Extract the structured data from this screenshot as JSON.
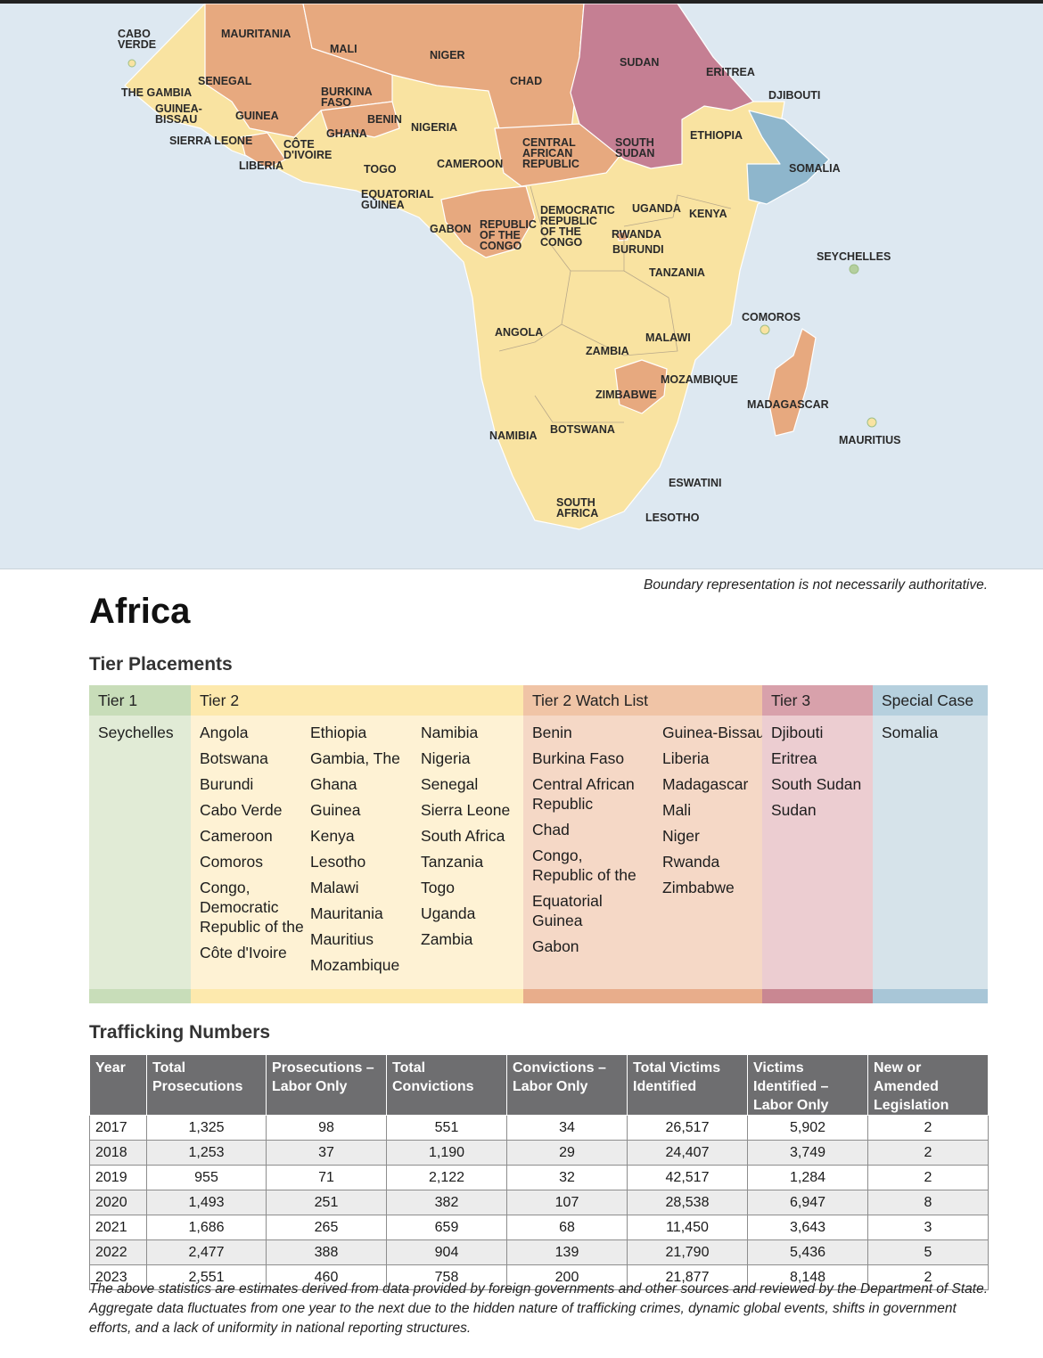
{
  "map": {
    "labels": [
      {
        "id": "cabo-verde",
        "lines": [
          "CABO",
          "VERDE"
        ]
      },
      {
        "id": "mauritania",
        "lines": [
          "MAURITANIA"
        ]
      },
      {
        "id": "mali",
        "lines": [
          "MALI"
        ]
      },
      {
        "id": "niger",
        "lines": [
          "NIGER"
        ]
      },
      {
        "id": "chad",
        "lines": [
          "CHAD"
        ]
      },
      {
        "id": "sudan",
        "lines": [
          "SUDAN"
        ]
      },
      {
        "id": "eritrea",
        "lines": [
          "ERITREA"
        ]
      },
      {
        "id": "djibouti",
        "lines": [
          "DJIBOUTI"
        ]
      },
      {
        "id": "senegal",
        "lines": [
          "SENEGAL"
        ]
      },
      {
        "id": "the-gambia",
        "lines": [
          "THE GAMBIA"
        ]
      },
      {
        "id": "guinea-bissau",
        "lines": [
          "GUINEA-",
          "BISSAU"
        ]
      },
      {
        "id": "guinea",
        "lines": [
          "GUINEA"
        ]
      },
      {
        "id": "burkina-faso",
        "lines": [
          "BURKINA",
          "FASO"
        ]
      },
      {
        "id": "benin",
        "lines": [
          "BENIN"
        ]
      },
      {
        "id": "nigeria",
        "lines": [
          "NIGERIA"
        ]
      },
      {
        "id": "ghana",
        "lines": [
          "GHANA"
        ]
      },
      {
        "id": "sierra-leone",
        "lines": [
          "SIERRA LEONE"
        ]
      },
      {
        "id": "cote-divoire",
        "lines": [
          "CÔTE",
          "D'IVOIRE"
        ]
      },
      {
        "id": "liberia",
        "lines": [
          "LIBERIA"
        ]
      },
      {
        "id": "togo",
        "lines": [
          "TOGO"
        ]
      },
      {
        "id": "central-african-republic",
        "lines": [
          "CENTRAL",
          "AFRICAN",
          "REPUBLIC"
        ]
      },
      {
        "id": "south-sudan",
        "lines": [
          "SOUTH",
          "SUDAN"
        ]
      },
      {
        "id": "ethiopia",
        "lines": [
          "ETHIOPIA"
        ]
      },
      {
        "id": "somalia",
        "lines": [
          "SOMALIA"
        ]
      },
      {
        "id": "cameroon",
        "lines": [
          "CAMEROON"
        ]
      },
      {
        "id": "equatorial-guinea",
        "lines": [
          "EQUATORIAL",
          "GUINEA"
        ]
      },
      {
        "id": "gabon",
        "lines": [
          "GABON"
        ]
      },
      {
        "id": "republic-of-the-congo",
        "lines": [
          "REPUBLIC",
          "OF THE",
          "CONGO"
        ]
      },
      {
        "id": "drc",
        "lines": [
          "DEMOCRATIC",
          "REPUBLIC",
          "OF THE",
          "CONGO"
        ]
      },
      {
        "id": "uganda",
        "lines": [
          "UGANDA"
        ]
      },
      {
        "id": "kenya",
        "lines": [
          "KENYA"
        ]
      },
      {
        "id": "rwanda",
        "lines": [
          "RWANDA"
        ]
      },
      {
        "id": "burundi",
        "lines": [
          "BURUNDI"
        ]
      },
      {
        "id": "tanzania",
        "lines": [
          "TANZANIA"
        ]
      },
      {
        "id": "seychelles",
        "lines": [
          "SEYCHELLES"
        ]
      },
      {
        "id": "comoros",
        "lines": [
          "COMOROS"
        ]
      },
      {
        "id": "angola",
        "lines": [
          "ANGOLA"
        ]
      },
      {
        "id": "malawi",
        "lines": [
          "MALAWI"
        ]
      },
      {
        "id": "zambia",
        "lines": [
          "ZAMBIA"
        ]
      },
      {
        "id": "mozambique",
        "lines": [
          "MOZAMBIQUE"
        ]
      },
      {
        "id": "zimbabwe",
        "lines": [
          "ZIMBABWE"
        ]
      },
      {
        "id": "madagascar",
        "lines": [
          "MADAGASCAR"
        ]
      },
      {
        "id": "namibia",
        "lines": [
          "NAMIBIA"
        ]
      },
      {
        "id": "botswana",
        "lines": [
          "BOTSWANA"
        ]
      },
      {
        "id": "mauritius",
        "lines": [
          "MAURITIUS"
        ]
      },
      {
        "id": "eswatini",
        "lines": [
          "ESWATINI"
        ]
      },
      {
        "id": "south-africa",
        "lines": [
          "SOUTH",
          "AFRICA"
        ]
      },
      {
        "id": "lesotho",
        "lines": [
          "LESOTHO"
        ]
      }
    ],
    "colors": {
      "ocean": "#dde8f1",
      "tier1": "#b4cf9e",
      "tier2": "#f9e3a1",
      "tier2_watch": "#e7a97f",
      "tier3": "#c57f93",
      "special": "#8eb6cc"
    }
  },
  "boundary_note": "Boundary representation is not necessarily authoritative.",
  "page_title": "Africa",
  "tier_section": {
    "heading": "Tier Placements",
    "columns": [
      {
        "key": "tier1",
        "header": "Tier 1",
        "head_color": "#c8ddb9",
        "body_color": "#e1ebd6",
        "foot_color": "#c8ddb9",
        "lists": [
          [
            "Seychelles"
          ]
        ]
      },
      {
        "key": "tier2",
        "header": "Tier 2",
        "head_color": "#fde9ad",
        "body_color": "#fef2d4",
        "foot_color": "#fde9ad",
        "lists": [
          [
            "Angola",
            "Botswana",
            "Burundi",
            "Cabo Verde",
            "Cameroon",
            "Comoros",
            "Congo, Democratic Republic of the",
            "Côte d'Ivoire"
          ],
          [
            "Ethiopia",
            "Gambia, The",
            "Ghana",
            "Guinea",
            "Kenya",
            "Lesotho",
            "Malawi",
            "Mauritania",
            "Mauritius",
            "Mozambique"
          ],
          [
            "Namibia",
            "Nigeria",
            "Senegal",
            "Sierra Leone",
            "South Africa",
            "Tanzania",
            "Togo",
            "Uganda",
            "Zambia"
          ]
        ]
      },
      {
        "key": "tier2watch",
        "header": "Tier 2 Watch List",
        "head_color": "#f0c4a6",
        "body_color": "#f5d8c6",
        "foot_color": "#e8ad8b",
        "lists": [
          [
            "Benin",
            "Burkina Faso",
            "Central African Republic",
            "Chad",
            "Congo, Republic of the",
            "Equatorial Guinea",
            "Gabon"
          ],
          [
            "Guinea-Bissau",
            "Liberia",
            "Madagascar",
            "Mali",
            "Niger",
            "Rwanda",
            "Zimbabwe"
          ]
        ]
      },
      {
        "key": "tier3",
        "header": "Tier 3",
        "head_color": "#d8a1ab",
        "body_color": "#eccdd1",
        "foot_color": "#c98792",
        "lists": [
          [
            "Djibouti",
            "Eritrea",
            "South Sudan",
            "Sudan"
          ]
        ]
      },
      {
        "key": "special",
        "header": "Special Case",
        "head_color": "#b6d0de",
        "body_color": "#d6e3ea",
        "foot_color": "#a8c6d7",
        "lists": [
          [
            "Somalia"
          ]
        ]
      }
    ]
  },
  "trafficking_section": {
    "heading": "Trafficking Numbers",
    "headers": [
      "Year",
      "Total Prosecutions",
      "Prosecutions – Labor Only",
      "Total Convictions",
      "Convictions – Labor Only",
      "Total Victims Identified",
      "Victims Identified – Labor Only",
      "New or Amended Legislation"
    ],
    "rows": [
      [
        "2017",
        "1,325",
        "98",
        "551",
        "34",
        "26,517",
        "5,902",
        "2"
      ],
      [
        "2018",
        "1,253",
        "37",
        "1,190",
        "29",
        "24,407",
        "3,749",
        "2"
      ],
      [
        "2019",
        "955",
        "71",
        "2,122",
        "32",
        "42,517",
        "1,284",
        "2"
      ],
      [
        "2020",
        "1,493",
        "251",
        "382",
        "107",
        "28,538",
        "6,947",
        "8"
      ],
      [
        "2021",
        "1,686",
        "265",
        "659",
        "68",
        "11,450",
        "3,643",
        "3"
      ],
      [
        "2022",
        "2,477",
        "388",
        "904",
        "139",
        "21,790",
        "5,436",
        "5"
      ],
      [
        "2023",
        "2,551",
        "460",
        "758",
        "200",
        "21,877",
        "8,148",
        "2"
      ]
    ]
  },
  "footnote": "The above statistics are estimates derived from data provided by foreign governments and other sources and reviewed by the Department of State. Aggregate data fluctuates from one year to the next due to the hidden nature of trafficking crimes, dynamic global events, shifts in government efforts, and a lack of uniformity in national reporting structures."
}
